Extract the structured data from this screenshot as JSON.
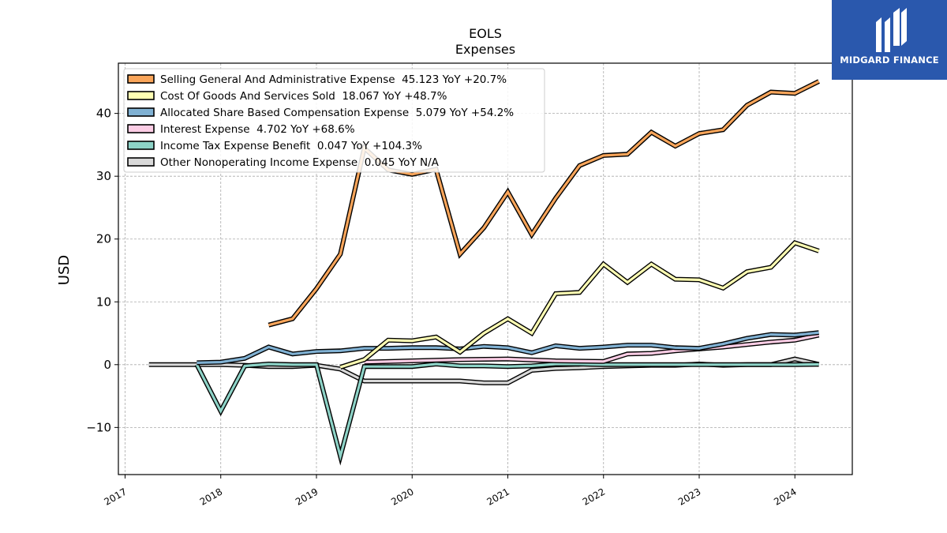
{
  "logo": {
    "text": "MIDGARD FINANCE"
  },
  "chart_data": {
    "type": "line",
    "title": "EOLS",
    "subtitle": "Expenses",
    "xlabel": "",
    "ylabel": "USD",
    "xlim": [
      2016.93,
      2024.6
    ],
    "ylim": [
      -17.5,
      48
    ],
    "x_ticks": [
      "2017",
      "2018",
      "2019",
      "2020",
      "2021",
      "2022",
      "2023",
      "2024"
    ],
    "y_ticks": [
      "−10",
      "0",
      "10",
      "20",
      "30",
      "40"
    ],
    "grid": true,
    "legend_position": "top-left",
    "series": [
      {
        "name": "Selling General And Administrative Expense  45.123 YoY +20.7%",
        "color": "#f9a55a",
        "points": [
          [
            2018.5,
            6.3
          ],
          [
            2018.75,
            7.3
          ],
          [
            2019.0,
            12.1
          ],
          [
            2019.25,
            17.6
          ],
          [
            2019.5,
            34.5
          ],
          [
            2019.75,
            31.0
          ],
          [
            2020.0,
            30.3
          ],
          [
            2020.25,
            31.1
          ],
          [
            2020.5,
            17.6
          ],
          [
            2020.75,
            21.8
          ],
          [
            2021.0,
            27.5
          ],
          [
            2021.25,
            20.7
          ],
          [
            2021.5,
            26.5
          ],
          [
            2021.75,
            31.7
          ],
          [
            2022.0,
            33.3
          ],
          [
            2022.25,
            33.5
          ],
          [
            2022.5,
            37.0
          ],
          [
            2022.75,
            34.8
          ],
          [
            2023.0,
            36.8
          ],
          [
            2023.25,
            37.4
          ],
          [
            2023.5,
            41.3
          ],
          [
            2023.75,
            43.4
          ],
          [
            2024.0,
            43.2
          ],
          [
            2024.25,
            45.1
          ]
        ]
      },
      {
        "name": "Cost Of Goods And Services Sold  18.067 YoY +48.7%",
        "color": "#ffffb3",
        "points": [
          [
            2019.25,
            -0.4
          ],
          [
            2019.5,
            0.8
          ],
          [
            2019.75,
            3.9
          ],
          [
            2020.0,
            3.8
          ],
          [
            2020.25,
            4.4
          ],
          [
            2020.5,
            2.0
          ],
          [
            2020.75,
            5.0
          ],
          [
            2021.0,
            7.3
          ],
          [
            2021.25,
            5.0
          ],
          [
            2021.5,
            11.3
          ],
          [
            2021.75,
            11.5
          ],
          [
            2022.0,
            16.0
          ],
          [
            2022.25,
            13.1
          ],
          [
            2022.5,
            16.0
          ],
          [
            2022.75,
            13.6
          ],
          [
            2023.0,
            13.5
          ],
          [
            2023.25,
            12.2
          ],
          [
            2023.5,
            14.8
          ],
          [
            2023.75,
            15.5
          ],
          [
            2024.0,
            19.4
          ],
          [
            2024.25,
            18.1
          ]
        ]
      },
      {
        "name": "Allocated Share Based Compensation Expense  5.079 YoY +54.2%",
        "color": "#80b1d3",
        "points": [
          [
            2017.75,
            0.3
          ],
          [
            2018.0,
            0.4
          ],
          [
            2018.25,
            1.0
          ],
          [
            2018.5,
            2.8
          ],
          [
            2018.75,
            1.7
          ],
          [
            2019.0,
            2.1
          ],
          [
            2019.25,
            2.2
          ],
          [
            2019.5,
            2.6
          ],
          [
            2019.75,
            2.6
          ],
          [
            2020.0,
            2.7
          ],
          [
            2020.25,
            2.7
          ],
          [
            2020.5,
            2.5
          ],
          [
            2020.75,
            2.9
          ],
          [
            2021.0,
            2.7
          ],
          [
            2021.25,
            1.9
          ],
          [
            2021.5,
            3.0
          ],
          [
            2021.75,
            2.6
          ],
          [
            2022.0,
            2.8
          ],
          [
            2022.25,
            3.1
          ],
          [
            2022.5,
            3.1
          ],
          [
            2022.75,
            2.7
          ],
          [
            2023.0,
            2.6
          ],
          [
            2023.25,
            3.3
          ],
          [
            2023.5,
            4.2
          ],
          [
            2023.75,
            4.8
          ],
          [
            2024.0,
            4.7
          ],
          [
            2024.25,
            5.1
          ]
        ]
      },
      {
        "name": "Interest Expense  4.702 YoY +68.6%",
        "color": "#fccde5",
        "points": [
          [
            2019.5,
            0.4
          ],
          [
            2020.0,
            0.6
          ],
          [
            2020.5,
            0.8
          ],
          [
            2021.0,
            0.9
          ],
          [
            2021.5,
            0.6
          ],
          [
            2022.0,
            0.5
          ],
          [
            2022.25,
            1.7
          ],
          [
            2022.5,
            1.8
          ],
          [
            2022.75,
            2.2
          ],
          [
            2023.0,
            2.5
          ],
          [
            2023.25,
            2.8
          ],
          [
            2023.5,
            3.2
          ],
          [
            2023.75,
            3.6
          ],
          [
            2024.0,
            3.9
          ],
          [
            2024.25,
            4.7
          ]
        ]
      },
      {
        "name": "Income Tax Expense Benefit  0.047 YoY +104.3%",
        "color": "#8dd3c7",
        "points": [
          [
            2017.75,
            0.0
          ],
          [
            2018.0,
            -7.4
          ],
          [
            2018.25,
            -0.2
          ],
          [
            2018.5,
            0.1
          ],
          [
            2018.75,
            0.0
          ],
          [
            2019.0,
            0.0
          ],
          [
            2019.25,
            -14.6
          ],
          [
            2019.5,
            -0.3
          ],
          [
            2019.75,
            -0.3
          ],
          [
            2020.0,
            -0.3
          ],
          [
            2020.25,
            0.1
          ],
          [
            2020.5,
            -0.2
          ],
          [
            2020.75,
            -0.2
          ],
          [
            2021.0,
            -0.3
          ],
          [
            2021.25,
            -0.2
          ],
          [
            2021.5,
            0.1
          ],
          [
            2021.75,
            0.1
          ],
          [
            2022.0,
            0.0
          ],
          [
            2022.25,
            0.0
          ],
          [
            2022.5,
            0.0
          ],
          [
            2022.75,
            0.0
          ],
          [
            2023.0,
            0.0
          ],
          [
            2023.25,
            0.0
          ],
          [
            2023.5,
            0.0
          ],
          [
            2023.75,
            0.0
          ],
          [
            2024.0,
            0.0
          ],
          [
            2024.25,
            0.05
          ]
        ]
      },
      {
        "name": "Other Nonoperating Income Expense  0.045 YoY N/A",
        "color": "#d9d9d9",
        "points": [
          [
            2017.25,
            0.0
          ],
          [
            2018.0,
            0.0
          ],
          [
            2018.25,
            -0.1
          ],
          [
            2018.5,
            -0.3
          ],
          [
            2018.75,
            -0.3
          ],
          [
            2019.0,
            -0.1
          ],
          [
            2019.25,
            -0.7
          ],
          [
            2019.5,
            -2.6
          ],
          [
            2019.75,
            -2.6
          ],
          [
            2020.0,
            -2.6
          ],
          [
            2020.25,
            -2.6
          ],
          [
            2020.5,
            -2.6
          ],
          [
            2020.75,
            -2.9
          ],
          [
            2021.0,
            -2.9
          ],
          [
            2021.25,
            -0.9
          ],
          [
            2021.5,
            -0.6
          ],
          [
            2021.75,
            -0.5
          ],
          [
            2022.0,
            -0.3
          ],
          [
            2022.25,
            -0.2
          ],
          [
            2022.5,
            -0.1
          ],
          [
            2022.75,
            -0.1
          ],
          [
            2023.0,
            0.1
          ],
          [
            2023.25,
            -0.1
          ],
          [
            2023.5,
            0.0
          ],
          [
            2023.75,
            0.0
          ],
          [
            2024.0,
            0.9
          ],
          [
            2024.25,
            0.05
          ]
        ]
      }
    ]
  }
}
